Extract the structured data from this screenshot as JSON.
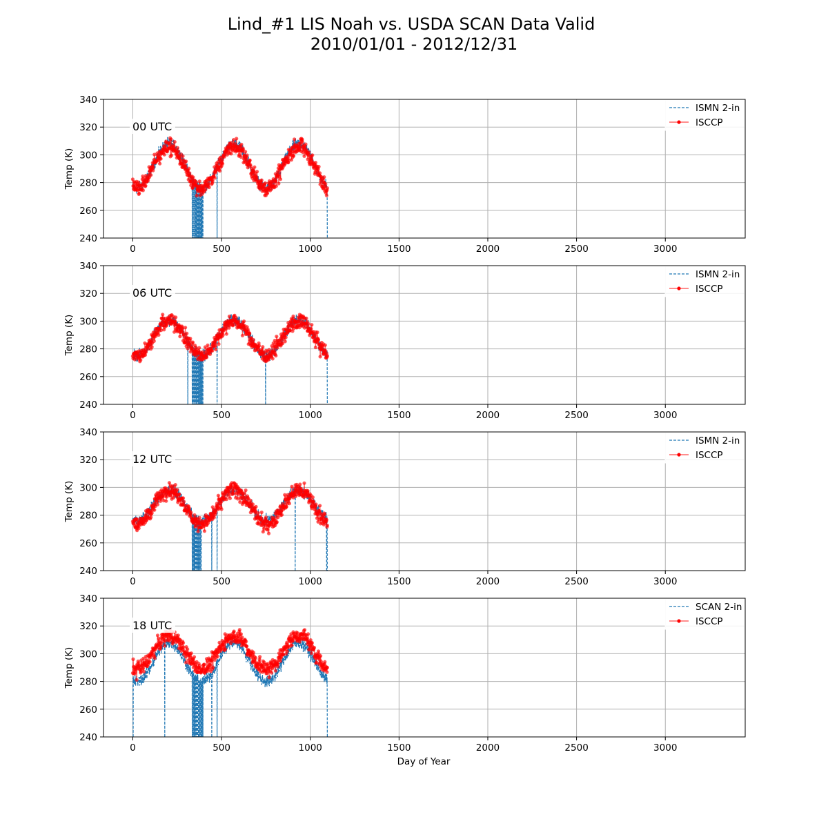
{
  "figure": {
    "title_line1": "Lind_#1 LIS Noah vs. USDA SCAN Data Valid",
    "title_line2": "2010/01/01 - 2012/12/31",
    "xlabel": "Day of Year"
  },
  "colors": {
    "ismn": "#1f77b4",
    "isccp": "#ff0000",
    "grid": "#b0b0b0"
  },
  "chart_data": [
    {
      "type": "line",
      "annotation": "00 UTC",
      "ylabel": "Temp (K)",
      "xlim": [
        -165,
        3450
      ],
      "ylim": [
        240,
        340
      ],
      "xticks": [
        0,
        500,
        1000,
        1500,
        2000,
        2500,
        3000
      ],
      "yticks": [
        240,
        260,
        280,
        300,
        320,
        340
      ],
      "grid": true,
      "legend_position": "upper-right",
      "series": [
        {
          "name": "ISMN 2-in",
          "style": "dashed",
          "seasonal": {
            "mean": 292,
            "amplitude": 16,
            "peak_day": 205,
            "period_days": 365,
            "noise": 3
          },
          "x_range": [
            0,
            1096
          ],
          "gap_days": [
            335,
            340,
            345,
            350,
            355,
            360,
            365,
            370,
            375,
            380,
            385,
            390,
            395,
            475,
            1096
          ]
        },
        {
          "name": "ISCCP",
          "style": "line-with-markers",
          "seasonal": {
            "mean": 291,
            "amplitude": 15,
            "peak_day": 205,
            "period_days": 365,
            "noise": 4
          },
          "x_range": [
            0,
            1096
          ]
        }
      ]
    },
    {
      "type": "line",
      "annotation": "06 UTC",
      "ylabel": "Temp (K)",
      "xlim": [
        -165,
        3450
      ],
      "ylim": [
        240,
        340
      ],
      "xticks": [
        0,
        500,
        1000,
        1500,
        2000,
        2500,
        3000
      ],
      "yticks": [
        240,
        260,
        280,
        300,
        320,
        340
      ],
      "grid": true,
      "legend_position": "upper-right",
      "series": [
        {
          "name": "ISMN 2-in",
          "style": "dashed",
          "seasonal": {
            "mean": 288,
            "amplitude": 13,
            "peak_day": 205,
            "period_days": 365,
            "noise": 3
          },
          "x_range": [
            0,
            1096
          ],
          "gap_days": [
            310,
            335,
            340,
            345,
            350,
            355,
            360,
            365,
            370,
            375,
            380,
            385,
            390,
            395,
            475,
            748,
            1096
          ]
        },
        {
          "name": "ISCCP",
          "style": "line-with-markers",
          "seasonal": {
            "mean": 288,
            "amplitude": 12,
            "peak_day": 205,
            "period_days": 365,
            "noise": 4
          },
          "x_range": [
            0,
            1096
          ]
        }
      ]
    },
    {
      "type": "line",
      "annotation": "12 UTC",
      "ylabel": "Temp (K)",
      "xlim": [
        -165,
        3450
      ],
      "ylim": [
        240,
        340
      ],
      "xticks": [
        0,
        500,
        1000,
        1500,
        2000,
        2500,
        3000
      ],
      "yticks": [
        240,
        260,
        280,
        300,
        320,
        340
      ],
      "grid": true,
      "legend_position": "upper-right",
      "series": [
        {
          "name": "ISMN 2-in",
          "style": "dashed",
          "seasonal": {
            "mean": 287,
            "amplitude": 11,
            "peak_day": 205,
            "period_days": 365,
            "noise": 3
          },
          "x_range": [
            0,
            1096
          ],
          "gap_days": [
            335,
            340,
            345,
            350,
            355,
            360,
            365,
            370,
            375,
            380,
            385,
            445,
            475,
            915,
            1092,
            1096
          ]
        },
        {
          "name": "ISCCP",
          "style": "line-with-markers",
          "seasonal": {
            "mean": 286,
            "amplitude": 12,
            "peak_day": 205,
            "period_days": 365,
            "noise": 4
          },
          "x_range": [
            0,
            1096
          ]
        }
      ]
    },
    {
      "type": "line",
      "annotation": "18 UTC",
      "ylabel": "Temp (K)",
      "xlabel": "Day of Year",
      "xlim": [
        -165,
        3450
      ],
      "ylim": [
        240,
        340
      ],
      "xticks": [
        0,
        500,
        1000,
        1500,
        2000,
        2500,
        3000
      ],
      "yticks": [
        240,
        260,
        280,
        300,
        320,
        340
      ],
      "grid": true,
      "legend_position": "upper-right",
      "series": [
        {
          "name": "SCAN 2-in",
          "style": "dashed",
          "seasonal": {
            "mean": 294,
            "amplitude": 14,
            "peak_day": 205,
            "period_days": 365,
            "noise": 3
          },
          "x_range": [
            0,
            1096
          ],
          "gap_days": [
            2,
            180,
            335,
            340,
            345,
            350,
            355,
            360,
            365,
            370,
            375,
            380,
            385,
            390,
            395,
            445,
            475,
            1096
          ]
        },
        {
          "name": "ISCCP",
          "style": "line-with-markers",
          "seasonal": {
            "mean": 301,
            "amplitude": 12,
            "peak_day": 205,
            "period_days": 365,
            "noise": 4
          },
          "x_range": [
            0,
            1096
          ]
        }
      ]
    }
  ]
}
